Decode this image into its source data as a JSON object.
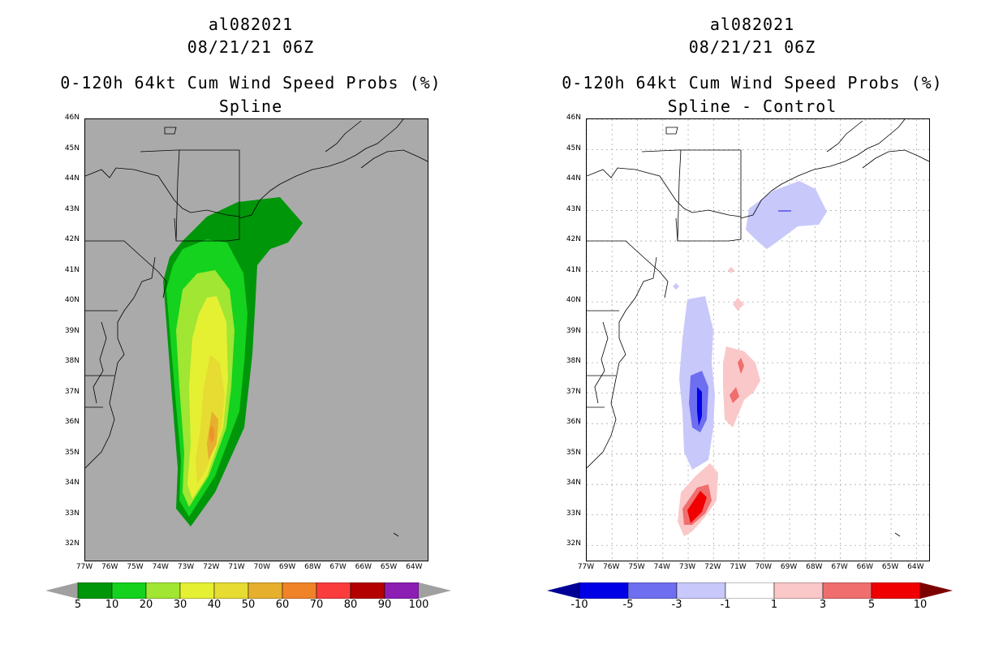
{
  "left": {
    "storm_id": "al082021",
    "datetime": "08/21/21 06Z",
    "product": "0-120h 64kt Cum Wind Speed Probs (%)",
    "subtitle": "Spline",
    "colorbar_labels": [
      "5",
      "10",
      "20",
      "30",
      "40",
      "50",
      "60",
      "70",
      "80",
      "90",
      "100"
    ],
    "colorbar_colors": [
      "#00960a",
      "#14d21e",
      "#a0e632",
      "#e6f032",
      "#e6dc32",
      "#e6af2d",
      "#f08228",
      "#fa3c3c",
      "#b40000",
      "#8c1eb4"
    ],
    "under_color": "#a0a0a0",
    "over_color": "#a0a0a0",
    "background_color": "#aaaaaa"
  },
  "right": {
    "storm_id": "al082021",
    "datetime": "08/21/21 06Z",
    "product": "0-120h 64kt Cum Wind Speed Probs (%)",
    "subtitle": "Spline - Control",
    "colorbar_labels": [
      "-10",
      "-5",
      "-3",
      "-1",
      "1",
      "3",
      "5",
      "10"
    ],
    "colorbar_colors": [
      "#0000e6",
      "#6e6ef0",
      "#c8c8fa",
      "#ffffff",
      "#fac8c8",
      "#f06e6e",
      "#f00000"
    ],
    "under_color": "#000096",
    "over_color": "#7d0000",
    "background_color": "#ffffff"
  },
  "axes": {
    "lat_labels": [
      "46N",
      "45N",
      "44N",
      "43N",
      "42N",
      "41N",
      "40N",
      "39N",
      "38N",
      "37N",
      "36N",
      "35N",
      "34N",
      "33N",
      "32N"
    ],
    "lon_labels": [
      "77W",
      "76W",
      "75W",
      "74W",
      "73W",
      "72W",
      "71W",
      "70W",
      "69W",
      "68W",
      "67W",
      "66W",
      "65W",
      "64W"
    ]
  }
}
